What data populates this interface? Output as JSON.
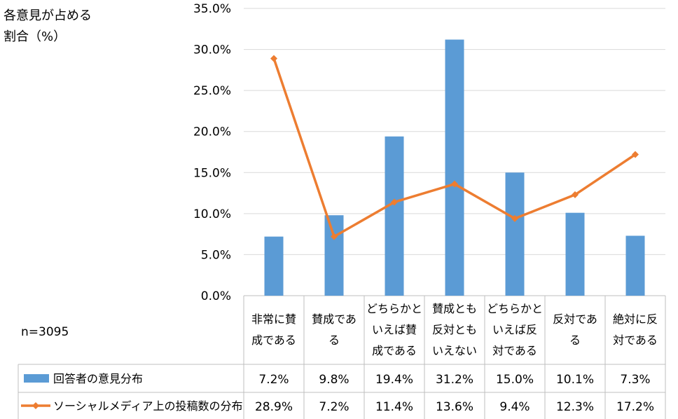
{
  "chart_data": {
    "type": "bar+line",
    "ylabel_lines": [
      "各意見が占める",
      "割合（%）"
    ],
    "sample_note": "n=3095",
    "ylim": [
      0,
      35
    ],
    "ytick_values": [
      0,
      5,
      10,
      15,
      20,
      25,
      30,
      35
    ],
    "ytick_labels": [
      "0.0%",
      "5.0%",
      "10.0%",
      "15.0%",
      "20.0%",
      "25.0%",
      "30.0%",
      "35.0%"
    ],
    "categories": [
      [
        "非常に賛",
        "成である"
      ],
      [
        "賛成であ",
        "る"
      ],
      [
        "どちらかと",
        "いえば賛",
        "成である"
      ],
      [
        "賛成とも",
        "反対とも",
        "いえない"
      ],
      [
        "どちらかと",
        "いえば反",
        "対である"
      ],
      [
        "反対であ",
        "る"
      ],
      [
        "絶対に反",
        "対である"
      ]
    ],
    "series": [
      {
        "name": "回答者の意見分布",
        "type": "bar",
        "color": "#5B9BD5",
        "values": [
          7.2,
          9.8,
          19.4,
          31.2,
          15.0,
          10.1,
          7.3
        ],
        "labels": [
          "7.2%",
          "9.8%",
          "19.4%",
          "31.2%",
          "15.0%",
          "10.1%",
          "7.3%"
        ]
      },
      {
        "name": "ソーシャルメディア上の投稿数の分布",
        "type": "line",
        "color": "#ED7D31",
        "values": [
          28.9,
          7.2,
          11.4,
          13.6,
          9.4,
          12.3,
          17.2
        ],
        "labels": [
          "28.9%",
          "7.2%",
          "11.4%",
          "13.6%",
          "9.4%",
          "12.3%",
          "17.2%"
        ]
      }
    ],
    "grid": true,
    "legend": "data-table-below"
  }
}
